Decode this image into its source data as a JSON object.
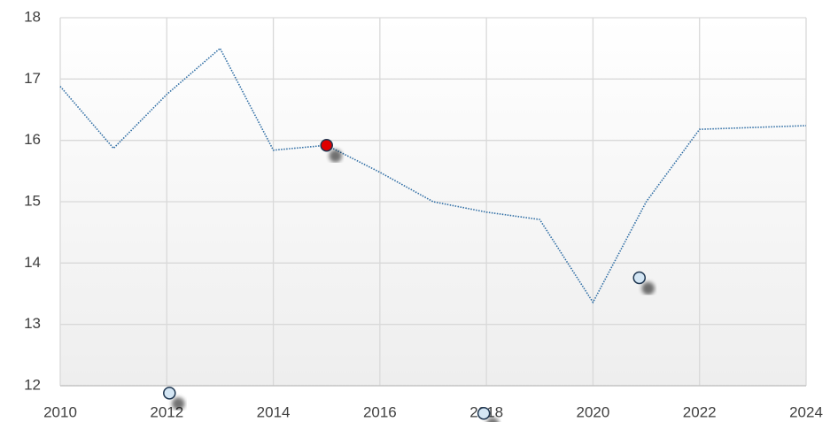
{
  "chart_data": {
    "type": "line",
    "x": [
      2010,
      2011,
      2012,
      2013,
      2014,
      2015,
      2016,
      2017,
      2018,
      2019,
      2020,
      2021,
      2022,
      2023,
      2024
    ],
    "series": [
      {
        "color": "#2e6da4",
        "values": [
          16.88,
          15.87,
          16.75,
          17.5,
          15.84,
          15.92,
          15.48,
          15.0,
          14.83,
          14.71,
          13.36,
          15.0,
          16.18,
          16.21,
          16.24
        ]
      }
    ],
    "markers": [
      {
        "x": 2015,
        "y": 15.92,
        "color": "#e00000"
      },
      {
        "x": 2012.05,
        "y": 11.88,
        "color": "#d4e6f4"
      },
      {
        "x": 2017.95,
        "y": 11.55,
        "color": "#d4e6f4"
      },
      {
        "x": 2020.87,
        "y": 13.76,
        "color": "#d4e6f4"
      }
    ],
    "xlim": [
      2010,
      2024
    ],
    "xticks": [
      2010,
      2012,
      2014,
      2016,
      2018,
      2020,
      2022,
      2024
    ],
    "ylim": [
      12,
      18
    ],
    "yticks": [
      12,
      13,
      14,
      15,
      16,
      17,
      18
    ],
    "grid": true
  }
}
